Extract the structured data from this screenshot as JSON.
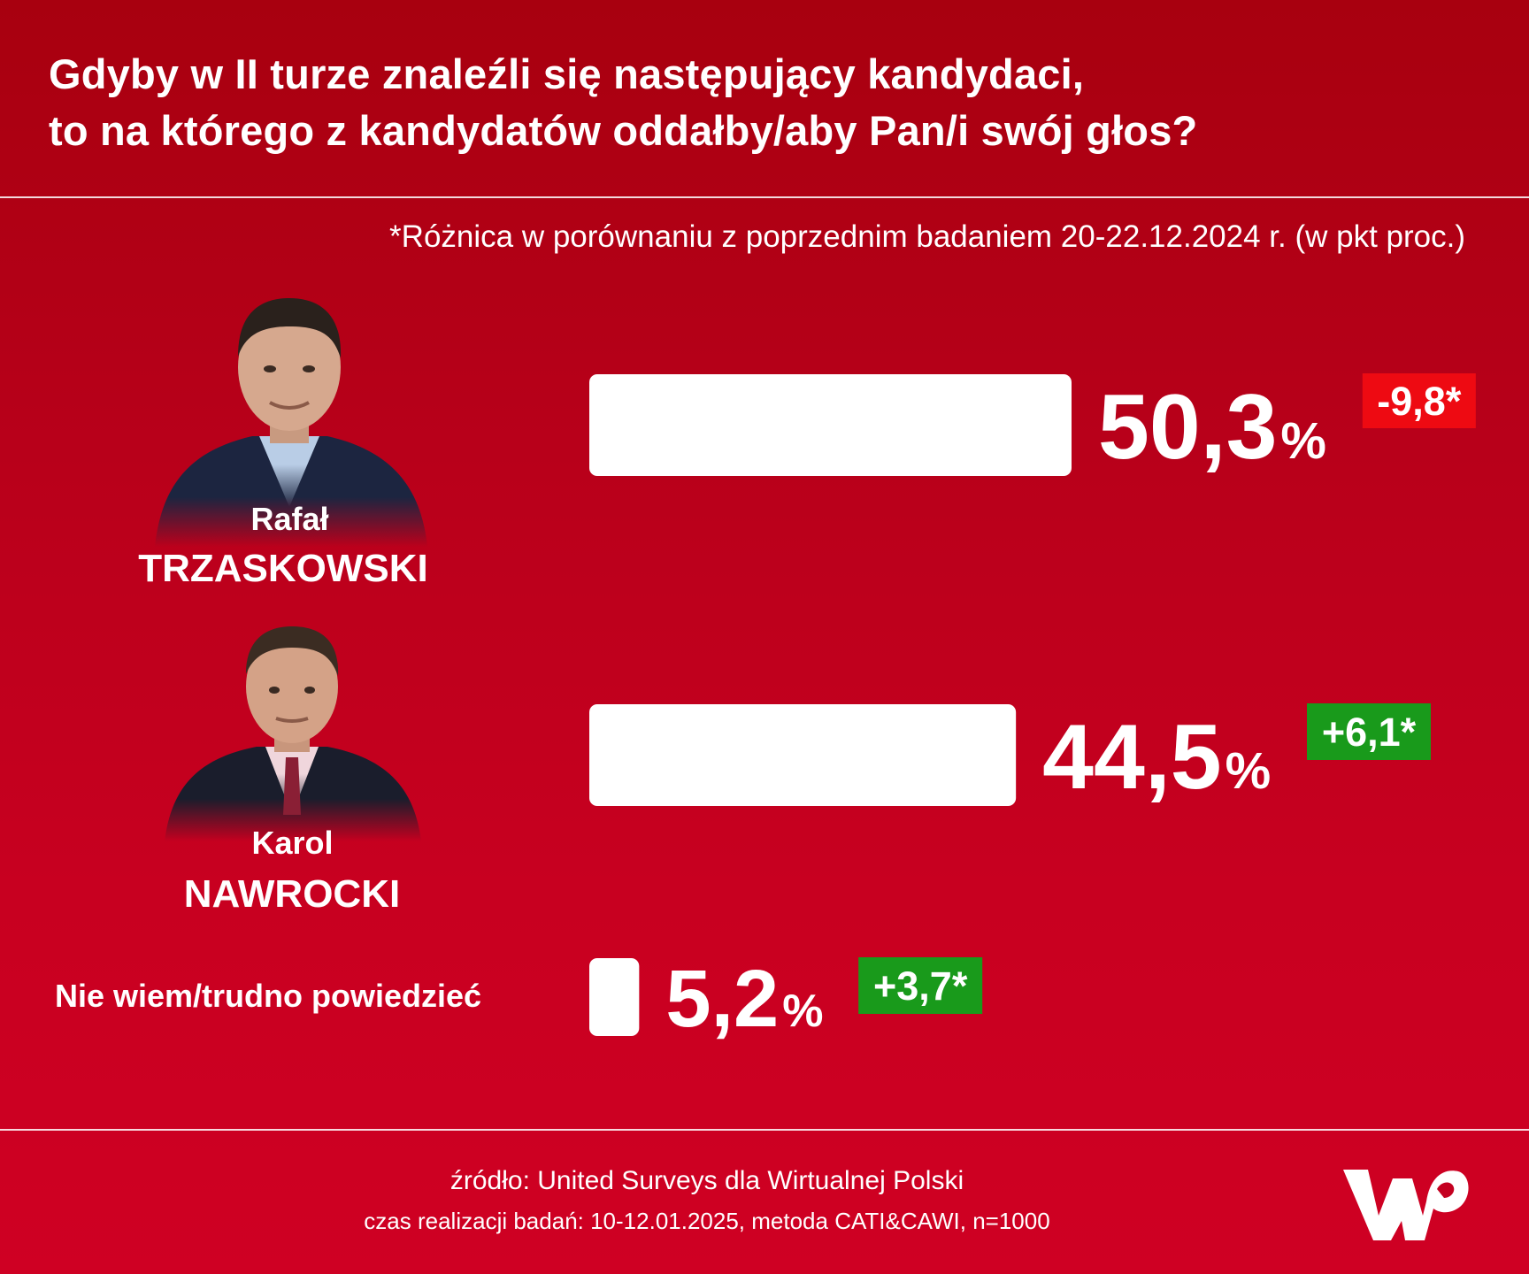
{
  "header": {
    "title_line1": "Gdyby w II turze znaleźli się następujący kandydaci,",
    "title_line2": "to na którego z kandydatów oddałby/aby Pan/i swój głos?"
  },
  "note": "*Różnica w porównaniu z poprzednim badaniem 20-22.12.2024 r. (w pkt proc.)",
  "candidates": [
    {
      "first": "Rafał",
      "last": "TRZASKOWSKI",
      "portrait_icon": "man-portrait-icon"
    },
    {
      "first": "Karol",
      "last": "NAWROCKI",
      "portrait_icon": "man-portrait-icon"
    }
  ],
  "other_label": "Nie wiem/trudno powiedzieć",
  "chart_data": {
    "type": "bar",
    "orientation": "horizontal",
    "categories": [
      "Rafał TRZASKOWSKI",
      "Karol NAWROCKI",
      "Nie wiem/trudno powiedzieć"
    ],
    "values": [
      50.3,
      44.5,
      5.2
    ],
    "value_labels": [
      "50,3",
      "44,5",
      "5,2"
    ],
    "unit": "%",
    "changes": [
      -9.8,
      6.1,
      3.7
    ],
    "change_labels": [
      "-9,8*",
      "+6,1*",
      "+3,7*"
    ],
    "title": "Gdyby w II turze znaleźli się następujący kandydaci, to na którego z kandydatów oddałby/aby Pan/i swój głos?",
    "xlim": [
      0,
      50.3
    ],
    "grid": false,
    "legend": "none"
  },
  "colors": {
    "background_top": "#a8000f",
    "background_bottom": "#cf0023",
    "bar": "#ffffff",
    "negative": "#ee0a12",
    "positive": "#199a1b"
  },
  "footer": {
    "source": "źródło: United Surveys dla Wirtualnej Polski",
    "meta": "czas realizacji badań: 10-12.01.2025, metoda CATI&CAWI, n=1000"
  },
  "logo": {
    "icon": "wp-logo-icon"
  }
}
